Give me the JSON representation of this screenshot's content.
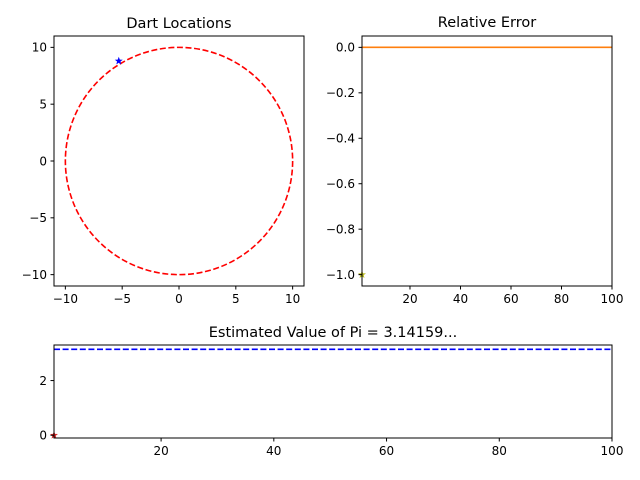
{
  "chart_data": [
    {
      "id": "dart",
      "type": "scatter",
      "title": "Dart Locations",
      "xlabel": "",
      "ylabel": "",
      "xlim": [
        -11,
        11
      ],
      "ylim": [
        -11,
        11
      ],
      "xticks": [
        -10,
        -5,
        0,
        5,
        10
      ],
      "yticks": [
        -10,
        -5,
        0,
        5,
        10
      ],
      "xtick_labels": [
        "−10",
        "−5",
        "0",
        "5",
        "10"
      ],
      "ytick_labels": [
        "−10",
        "−5",
        "0",
        "5",
        "10"
      ],
      "circle": {
        "cx": 0,
        "cy": 0,
        "r": 10,
        "color": "#ff0000",
        "style": "dashed"
      },
      "points": [
        {
          "x": -5.3,
          "y": 8.8,
          "color": "#0000ff",
          "marker": "star"
        }
      ],
      "grid": false
    },
    {
      "id": "err",
      "type": "line",
      "title": "Relative Error",
      "xlabel": "",
      "ylabel": "",
      "xlim": [
        1,
        100
      ],
      "ylim": [
        -1.05,
        0.05
      ],
      "xticks": [
        20,
        40,
        60,
        80,
        100
      ],
      "yticks": [
        0.0,
        -0.2,
        -0.4,
        -0.6,
        -0.8,
        -1.0
      ],
      "xtick_labels": [
        "20",
        "40",
        "60",
        "80",
        "100"
      ],
      "ytick_labels": [
        "0.0",
        "−0.2",
        "−0.4",
        "−0.6",
        "−0.8",
        "−1.0"
      ],
      "series": [
        {
          "x": [
            1,
            100
          ],
          "y": [
            0,
            0
          ],
          "color": "#ff7f0e",
          "style": "solid"
        }
      ],
      "points": [
        {
          "x": 1,
          "y": -1.0,
          "color": "#bcbd22",
          "marker": "star"
        }
      ],
      "grid": false
    },
    {
      "id": "pi",
      "type": "line",
      "title": "Estimated Value of Pi = 3.14159...",
      "xlabel": "",
      "ylabel": "",
      "xlim": [
        1,
        100
      ],
      "ylim": [
        -0.1,
        3.3
      ],
      "xticks": [
        20,
        40,
        60,
        80,
        100
      ],
      "yticks": [
        0,
        2
      ],
      "xtick_labels": [
        "20",
        "40",
        "60",
        "80",
        "100"
      ],
      "ytick_labels": [
        "0",
        "2"
      ],
      "series": [
        {
          "x": [
            1,
            100
          ],
          "y": [
            3.14159,
            3.14159
          ],
          "color": "#0000ff",
          "style": "dashed"
        }
      ],
      "points": [
        {
          "x": 1,
          "y": 0,
          "color": "#d62728",
          "marker": "star"
        }
      ],
      "grid": false
    }
  ]
}
